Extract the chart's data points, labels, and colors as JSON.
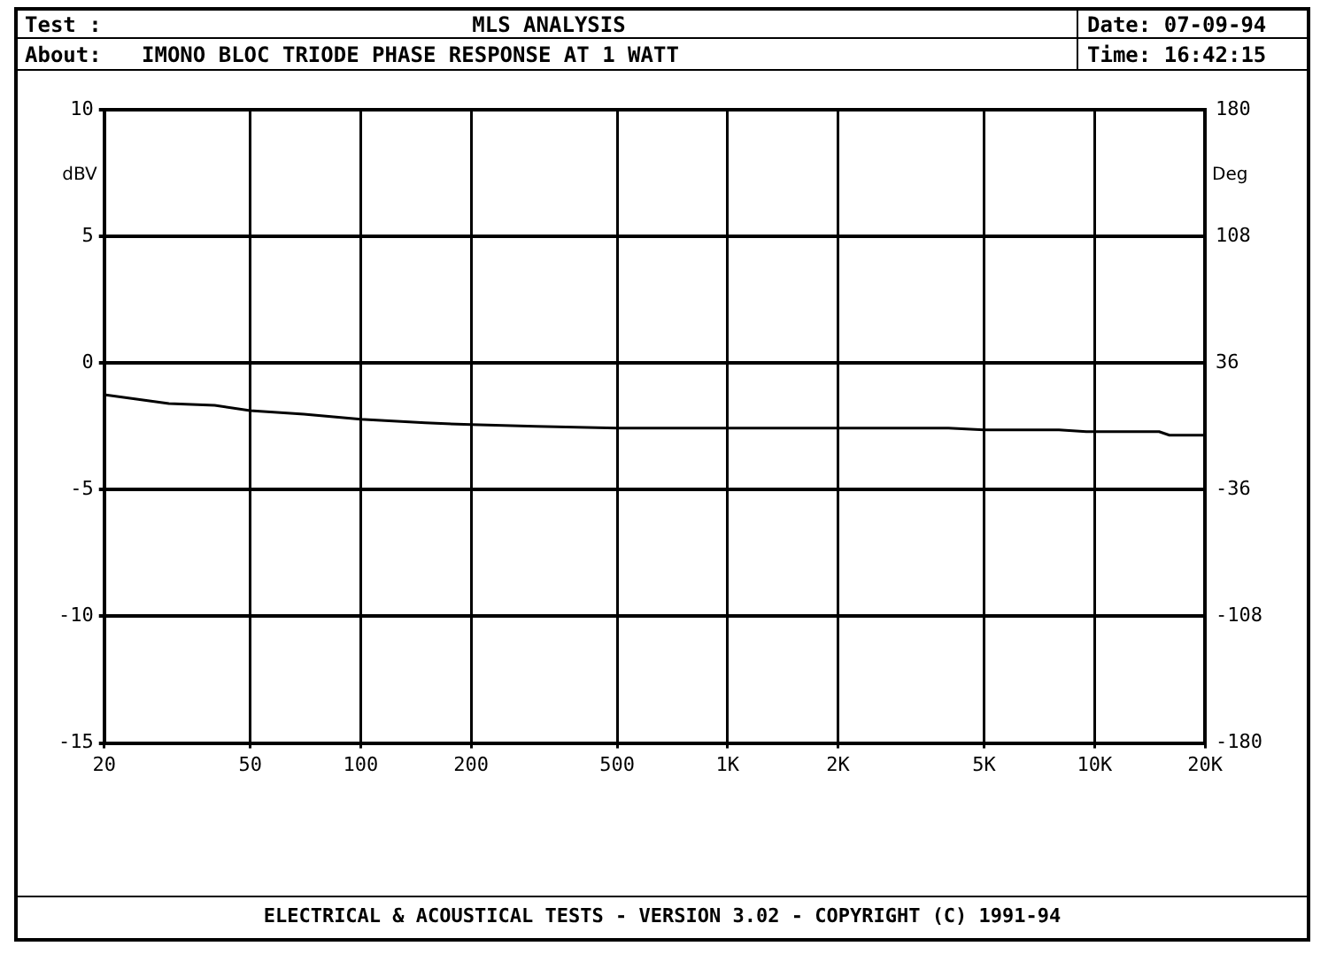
{
  "chart_data": {
    "type": "line",
    "title": "MLS ANALYSIS",
    "subtitle": "IMONO BLOC TRIODE PHASE RESPONSE AT 1 WATT",
    "annotations": [
      "Test :",
      "About:",
      "Date: 07-09-94",
      "Time: 16:42:15",
      "ELECTRICAL & ACOUSTICAL TESTS - VERSION 3.02 - COPYRIGHT (C) 1991-94"
    ],
    "ylabel": "dBV",
    "y2label": "Deg",
    "x": [
      20,
      30,
      40,
      50,
      70,
      100,
      150,
      200,
      300,
      500,
      1000,
      2000,
      4000,
      5000,
      8000,
      9500,
      15000,
      16000,
      20000
    ],
    "series": [
      {
        "color": "#000000",
        "axis": "y2",
        "values": [
          18,
          13,
          12,
          9,
          7,
          4,
          2,
          1,
          0,
          -1,
          -1,
          -1,
          -1,
          -2,
          -2,
          -3,
          -3,
          -5,
          -5
        ]
      }
    ],
    "log": "x",
    "xlim": [
      20,
      20000
    ],
    "xticks": [
      20,
      50,
      100,
      200,
      500,
      {
        "value": 1000,
        "label": "1K"
      },
      {
        "value": 2000,
        "label": "2K"
      },
      {
        "value": 5000,
        "label": "5K"
      },
      {
        "value": 10000,
        "label": "10K"
      },
      {
        "value": 20000,
        "label": "20K"
      }
    ],
    "ylim": [
      -15,
      10
    ],
    "yticks": [
      -15,
      -10,
      -5,
      0,
      5,
      10
    ],
    "y2lim": [
      -180,
      180
    ],
    "y2ticks": [
      -180,
      -108,
      -36,
      36,
      108,
      180
    ],
    "grid": true,
    "legend": false,
    "marker": "none",
    "line_style": "solid"
  }
}
